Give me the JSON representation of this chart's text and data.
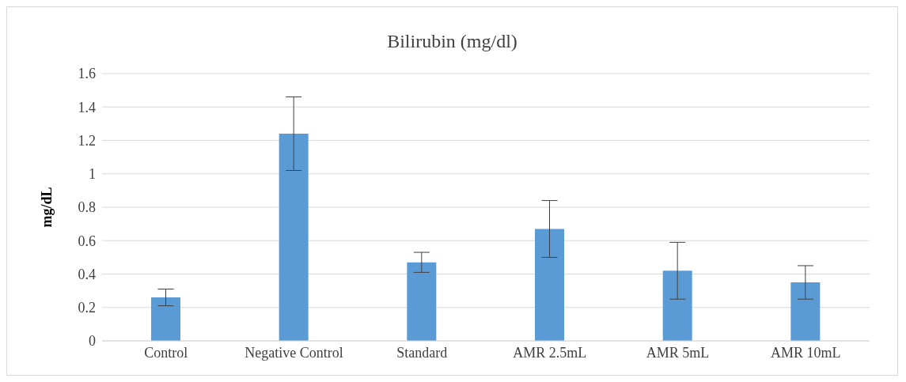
{
  "chart_data": {
    "type": "bar",
    "title": "Bilirubin (mg/dl)",
    "ylabel": "mg/dL",
    "categories": [
      "Control",
      "Negative Control",
      "Standard",
      "AMR 2.5mL",
      "AMR 5mL",
      "AMR 10mL"
    ],
    "values": [
      0.26,
      1.24,
      0.47,
      0.67,
      0.42,
      0.35
    ],
    "errors": [
      0.05,
      0.22,
      0.06,
      0.17,
      0.17,
      0.1
    ],
    "color": "#5b9bd5",
    "ylim": [
      0,
      1.6
    ],
    "yticks": [
      0,
      0.2,
      0.4,
      0.6,
      0.8,
      1,
      1.2,
      1.4,
      1.6
    ],
    "grid": "y"
  }
}
